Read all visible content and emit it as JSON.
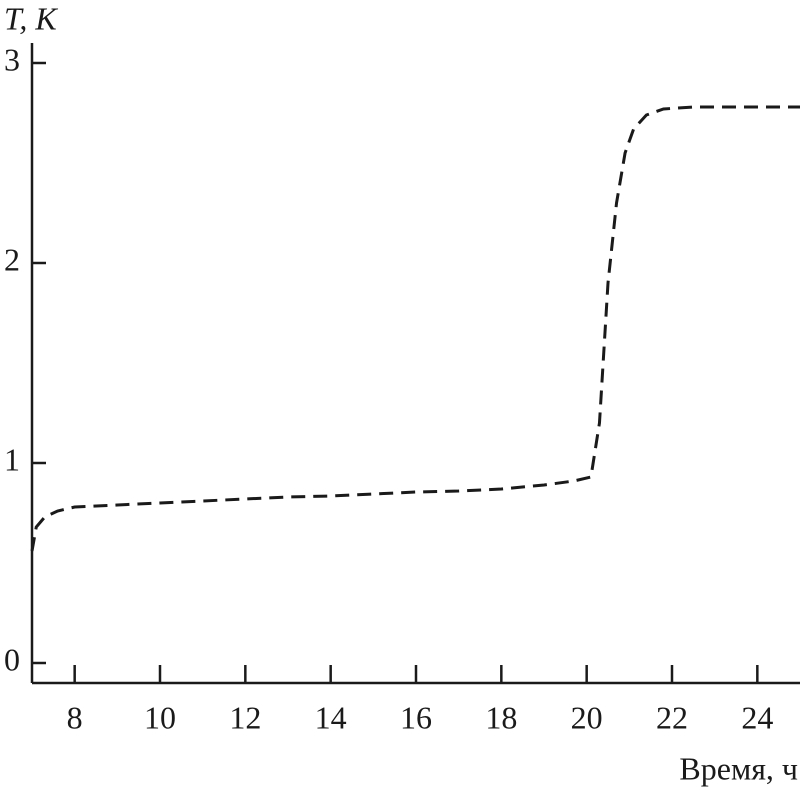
{
  "chart_data": {
    "type": "line",
    "y_label": "T, K",
    "x_label": "Время, ч",
    "x": [
      7.0,
      7.1,
      7.3,
      7.6,
      8,
      9,
      10,
      11,
      12,
      13,
      14,
      15,
      16,
      17,
      18,
      19,
      19.7,
      20.1,
      20.3,
      20.5,
      20.7,
      20.9,
      21.1,
      21.4,
      21.8,
      22.5,
      25
    ],
    "series": [
      {
        "color": "#1a1a1a",
        "values": [
          0.56,
          0.68,
          0.73,
          0.76,
          0.78,
          0.79,
          0.8,
          0.81,
          0.82,
          0.83,
          0.835,
          0.845,
          0.855,
          0.86,
          0.87,
          0.89,
          0.91,
          0.93,
          1.2,
          1.9,
          2.3,
          2.55,
          2.67,
          2.74,
          2.77,
          2.78,
          2.78
        ]
      }
    ],
    "xlim": [
      7,
      25
    ],
    "ylim": [
      -0.1,
      3.1
    ],
    "xticks": [
      8,
      10,
      12,
      14,
      16,
      18,
      20,
      22,
      24
    ],
    "yticks": [
      0,
      1,
      2,
      3
    ],
    "grid": false
  }
}
